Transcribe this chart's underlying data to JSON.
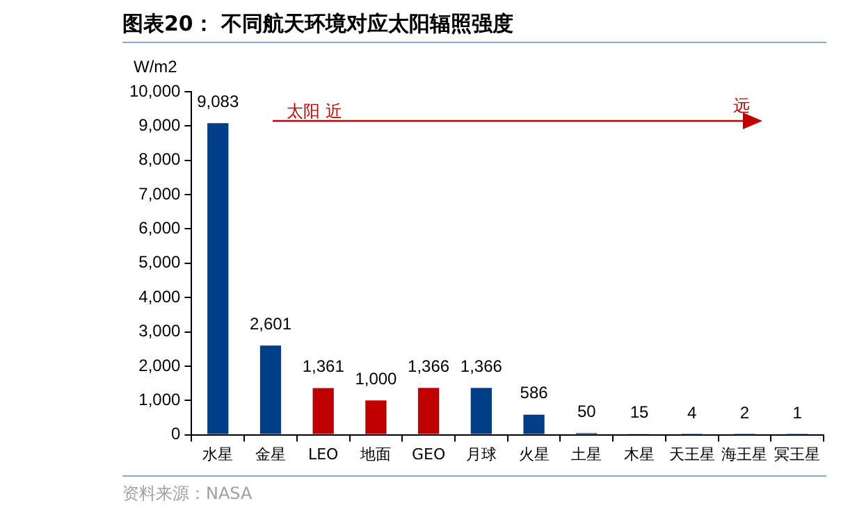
{
  "chart_data": {
    "type": "bar",
    "title": "图表20：  不同航天环境对应太阳辐照强度",
    "ylabel": "W/m2",
    "categories": [
      "水星",
      "金星",
      "LEO",
      "地面",
      "GEO",
      "月球",
      "火星",
      "土星",
      "木星",
      "天王星",
      "海王星",
      "冥王星"
    ],
    "values": [
      9083,
      2601,
      1361,
      1000,
      1366,
      1366,
      586,
      50,
      15,
      4,
      2,
      1
    ],
    "colors": [
      "#003f87",
      "#003f87",
      "#c00000",
      "#c00000",
      "#c00000",
      "#003f87",
      "#003f87",
      "#003f87",
      "#003f87",
      "#003f87",
      "#003f87",
      "#003f87"
    ],
    "ylim": [
      0,
      10000
    ],
    "yticks": [
      {
        "value": 0,
        "label": "0"
      },
      {
        "value": 1000,
        "label": "1,000"
      },
      {
        "value": 2000,
        "label": "2,000"
      },
      {
        "value": 3000,
        "label": "3,000"
      },
      {
        "value": 4000,
        "label": "4,000"
      },
      {
        "value": 5000,
        "label": "5,000"
      },
      {
        "value": 6000,
        "label": "6,000"
      },
      {
        "value": 7000,
        "label": "7,000"
      },
      {
        "value": 8000,
        "label": "8,000"
      },
      {
        "value": 9000,
        "label": "9,000"
      },
      {
        "value": 10000,
        "label": "10,000"
      }
    ],
    "value_labels": [
      "9,083",
      "2,601",
      "1,361",
      "1,000",
      "1,366",
      "1,366",
      "586",
      "50",
      "15",
      "4",
      "2",
      "1"
    ],
    "annotations": [
      "太阳 近",
      "远",
      "资料来源：NASA"
    ],
    "grid": false,
    "legend": false
  }
}
